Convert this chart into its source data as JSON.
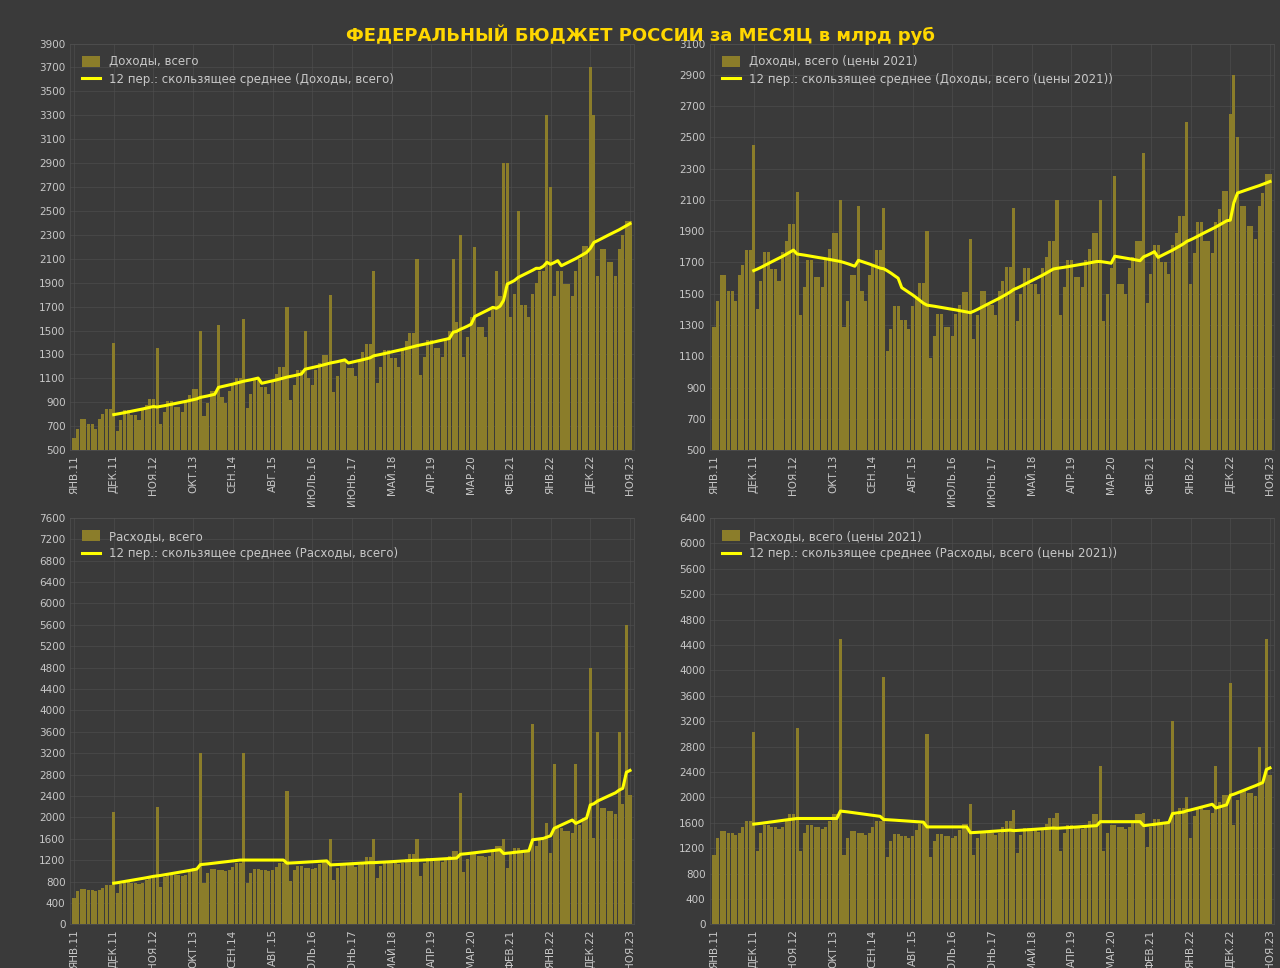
{
  "title": "ФЕДЕРАЛЬНЫЙ БЮДЖЕТ РОССИИ за МЕСЯЦ в млрд руб",
  "bg_color": "#3a3a3a",
  "plot_bg_color": "#3a3a3a",
  "bar_color": "#8B7D2A",
  "line_color": "#FFFF00",
  "title_color": "#FFD700",
  "text_color": "#C8C8C8",
  "grid_color": "#505050",
  "subplots": [
    {
      "legend1": "Доходы, всего",
      "legend2": "12 пер.: скользящее среднее (Доходы, всего)",
      "ylim": [
        500,
        3900
      ],
      "yticks": [
        500,
        700,
        900,
        1100,
        1300,
        1500,
        1700,
        1900,
        2100,
        2300,
        2500,
        2700,
        2900,
        3100,
        3300,
        3500,
        3700,
        3900
      ]
    },
    {
      "legend1": "Доходы, всего (цены 2021)",
      "legend2": "12 пер.: скользящее среднее (Доходы, всего (цены 2021))",
      "ylim": [
        500,
        3100
      ],
      "yticks": [
        500,
        700,
        900,
        1100,
        1300,
        1500,
        1700,
        1900,
        2100,
        2300,
        2500,
        2700,
        2900,
        3100
      ]
    },
    {
      "legend1": "Расходы, всего",
      "legend2": "12 пер.: скользящее среднее (Расходы, всего)",
      "ylim": [
        0,
        7600
      ],
      "yticks": [
        0,
        400,
        800,
        1200,
        1600,
        2000,
        2400,
        2800,
        3200,
        3600,
        4000,
        4400,
        4800,
        5200,
        5600,
        6000,
        6400,
        6800,
        7200,
        7600
      ]
    },
    {
      "legend1": "Расходы, всего (цены 2021)",
      "legend2": "12 пер.: скользящее среднее (Расходы, всего (цены 2021))",
      "ylim": [
        0,
        6400
      ],
      "yticks": [
        0,
        400,
        800,
        1200,
        1600,
        2000,
        2400,
        2800,
        3200,
        3600,
        4000,
        4400,
        4800,
        5200,
        5600,
        6000,
        6400
      ]
    }
  ],
  "xtick_step": 11,
  "xtick_labels": [
    "ЯНВ.11",
    "ДЕК.11",
    "НОЯ.12",
    "ОКТ.13",
    "СЕН.14",
    "АВГ.15",
    "ИЮЛЬ.16",
    "ИЮНЬ.17",
    "МАЙ.18",
    "АПР.19",
    "МАР.20",
    "ФЕВ.21",
    "ЯНВ.22",
    "ДЕК.22",
    "НОЯ.23"
  ]
}
